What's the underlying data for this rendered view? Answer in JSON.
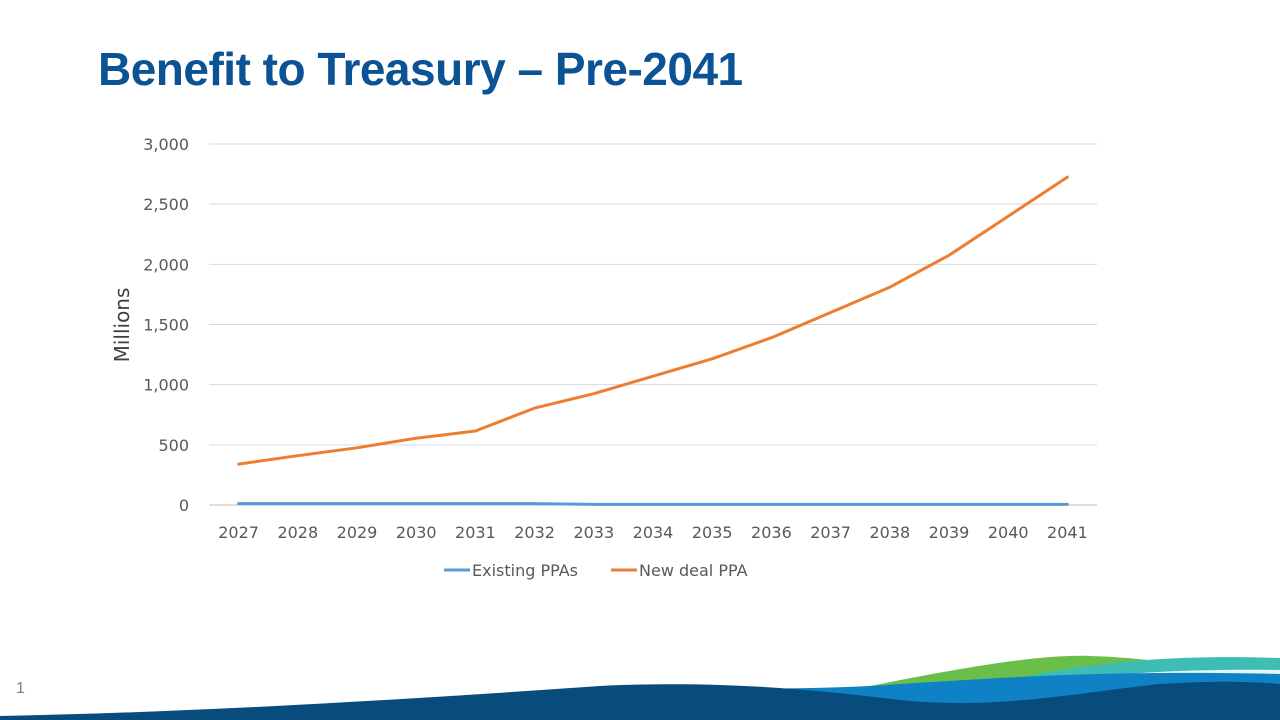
{
  "slide": {
    "title": "Benefit to Treasury – Pre-2041",
    "page_number": "1"
  },
  "colors": {
    "title": "#0b5394",
    "existing_series": "#5b9bd5",
    "new_deal_series": "#ed7d31",
    "gridline": "#d9d9d9",
    "wave_dark_blue": "#084c7d",
    "wave_mid_blue": "#0f82c5",
    "wave_green": "#6abf4b",
    "wave_teal": "#3dbdb4"
  },
  "chart_data": {
    "type": "line",
    "ylabel": "Millions",
    "ylim": [
      0,
      3000
    ],
    "yticks": [
      0,
      500,
      1000,
      1500,
      2000,
      2500,
      3000
    ],
    "ytick_labels": [
      "0",
      "500",
      "1,000",
      "1,500",
      "2,000",
      "2,500",
      "3,000"
    ],
    "grid": true,
    "legend_position": "bottom",
    "categories": [
      "2027",
      "2028",
      "2029",
      "2030",
      "2031",
      "2032",
      "2033",
      "2034",
      "2035",
      "2036",
      "2037",
      "2038",
      "2039",
      "2040",
      "2041"
    ],
    "series": [
      {
        "name": "Existing PPAs",
        "color": "#5b9bd5",
        "values": [
          12,
          12,
          12,
          12,
          12,
          12,
          5,
          5,
          5,
          5,
          5,
          5,
          5,
          5,
          5
        ]
      },
      {
        "name": "New deal PPA",
        "color": "#ed7d31",
        "values": [
          340,
          410,
          475,
          555,
          615,
          805,
          925,
          1070,
          1215,
          1390,
          1600,
          1810,
          2075,
          2400,
          2725
        ]
      }
    ]
  }
}
